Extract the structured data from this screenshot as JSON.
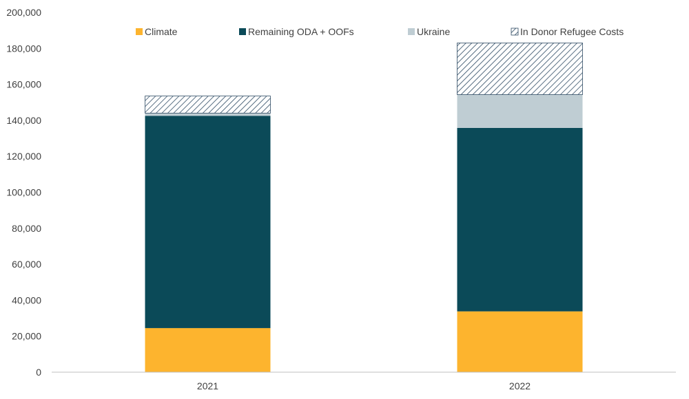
{
  "chart_data": {
    "type": "bar",
    "stacked": true,
    "categories": [
      "2021",
      "2022"
    ],
    "series": [
      {
        "name": "Climate",
        "values": [
          24500,
          33800
        ],
        "color": "#FDB42E",
        "pattern": "solid"
      },
      {
        "name": "Remaining ODA + OOFs",
        "values": [
          118000,
          102000
        ],
        "color": "#0B4A58",
        "pattern": "solid"
      },
      {
        "name": "Ukraine",
        "values": [
          1500,
          18500
        ],
        "color": "#BFCDD3",
        "pattern": "solid"
      },
      {
        "name": "In Donor Refugee Costs",
        "values": [
          9500,
          28700
        ],
        "color": "#2E4A63",
        "pattern": "hatch"
      }
    ],
    "ylim": [
      0,
      200000
    ],
    "yticks": [
      0,
      20000,
      40000,
      60000,
      80000,
      100000,
      120000,
      140000,
      160000,
      180000,
      200000
    ],
    "ytick_labels": [
      "0",
      "20,000",
      "40,000",
      "60,000",
      "80,000",
      "100,000",
      "120,000",
      "140,000",
      "160,000",
      "180,000",
      "200,000"
    ],
    "title": "",
    "xlabel": "",
    "ylabel": "",
    "grid": false,
    "legend_position": "top"
  }
}
